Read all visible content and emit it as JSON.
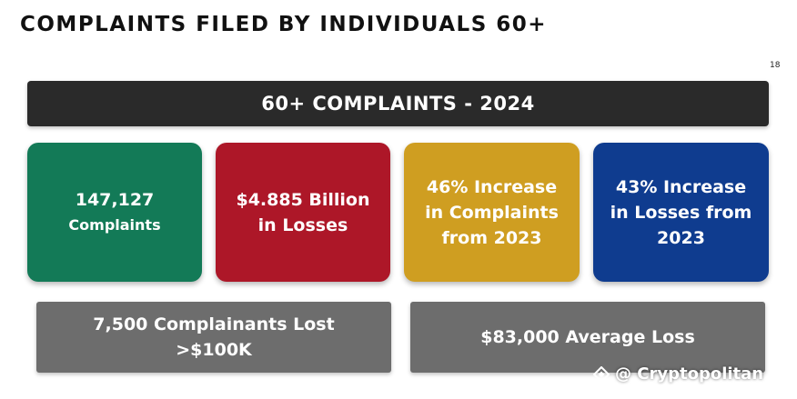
{
  "title": "COMPLAINTS FILED BY INDIVIDUALS 60+",
  "page_number": "18",
  "banner": "60+ COMPLAINTS - 2024",
  "cards": [
    {
      "lines": [
        "147,127",
        "Complaints"
      ],
      "color": "#137a57"
    },
    {
      "lines": [
        "$4.885 Billion",
        "in Losses"
      ],
      "color": "#ad1728"
    },
    {
      "lines": [
        "46% Increase",
        "in Complaints",
        "from 2023"
      ],
      "color": "#cf9e21"
    },
    {
      "lines": [
        "43% Increase",
        "in Losses from",
        "2023"
      ],
      "color": "#0f3c8f"
    }
  ],
  "summary": [
    {
      "lines": [
        "7,500 Complainants Lost",
        ">$100K"
      ]
    },
    {
      "lines": [
        "$83,000 Average Loss"
      ]
    }
  ],
  "watermark": {
    "text": "@ Cryptopolitan",
    "icon": "cryptopolitan-logo-icon"
  },
  "colors": {
    "banner": "#2a2a2a",
    "summary": "#6d6d6d",
    "text": "#ffffff"
  }
}
